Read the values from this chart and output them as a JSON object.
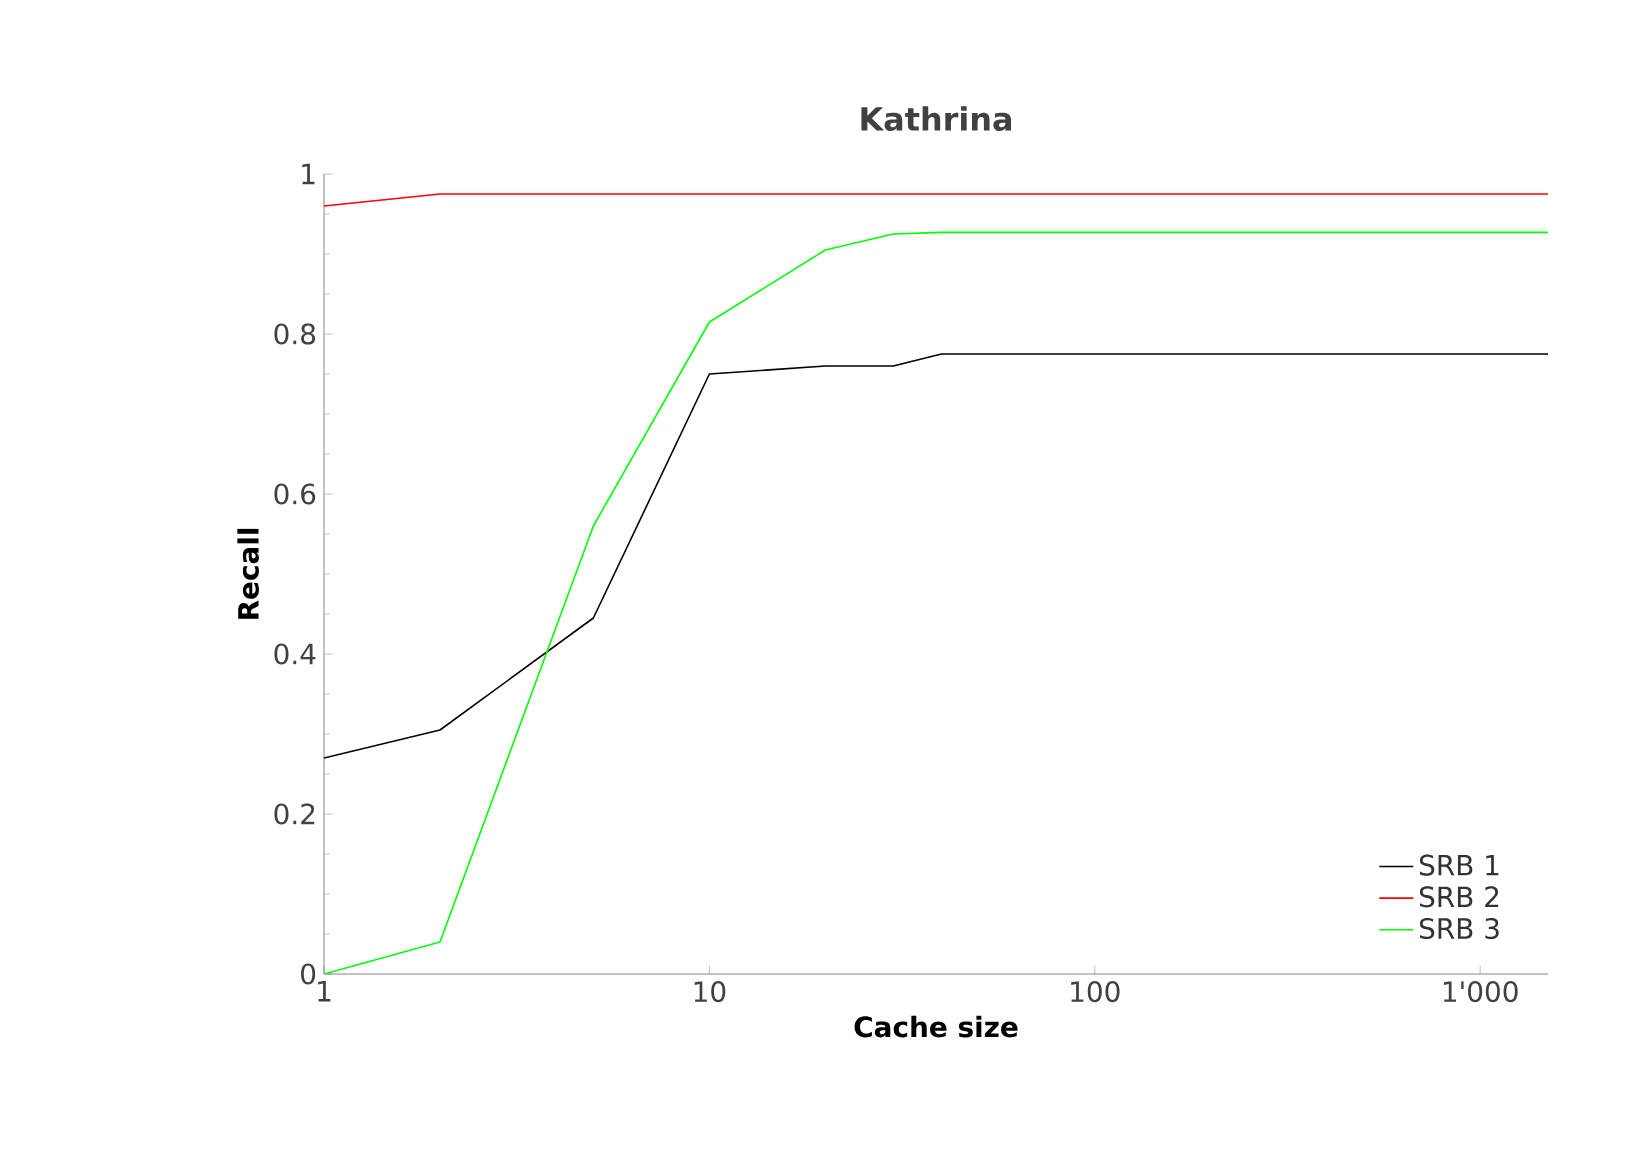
{
  "chart_data": {
    "type": "line",
    "title": "Kathrina",
    "xlabel": "Cache size",
    "ylabel": "Recall",
    "x": [
      1,
      2,
      5,
      10,
      20,
      30,
      40,
      1500
    ],
    "series": [
      {
        "name": "SRB 1",
        "color": "#000000",
        "values": [
          0.27,
          0.305,
          0.445,
          0.75,
          0.76,
          0.76,
          0.775,
          0.775
        ]
      },
      {
        "name": "SRB 2",
        "color": "#ff0000",
        "values": [
          0.96,
          0.975,
          0.975,
          0.975,
          0.975,
          0.975,
          0.975,
          0.975
        ]
      },
      {
        "name": "SRB 3",
        "color": "#00ff00",
        "values": [
          0,
          0.04,
          0.56,
          0.815,
          0.905,
          0.925,
          0.927,
          0.927
        ]
      }
    ],
    "xlim": [
      1,
      1500
    ],
    "ylim": [
      0,
      1
    ],
    "xticks": [
      1,
      10,
      100,
      {
        "value": 1000,
        "label": "1'000"
      }
    ],
    "yticks": [
      0,
      0.2,
      0.4,
      0.6,
      0.8,
      1
    ],
    "log": "x",
    "legend": "bottom right"
  }
}
